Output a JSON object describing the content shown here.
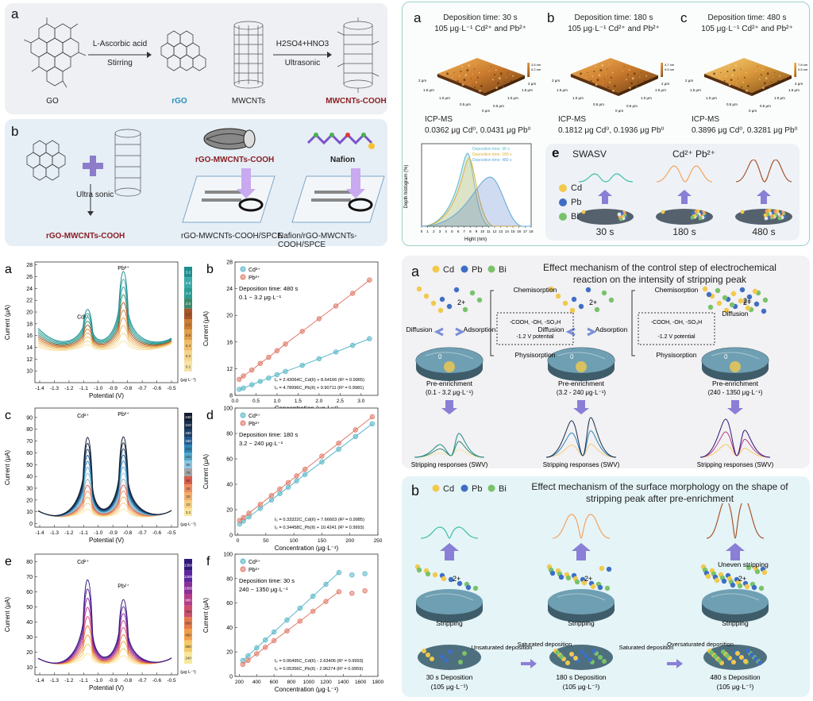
{
  "topleft": {
    "panel_a": {
      "letter": "a",
      "reagent1_line1": "L-Ascorbic acid",
      "reagent1_line2": "Stirring",
      "reagent2_line1": "H2SO4+HNO3",
      "reagent2_line2": "Ultrasonic",
      "label_go": "GO",
      "label_rgo": "rGO",
      "label_mwcnts": "MWCNTs",
      "label_mwcnts_cooh": "MWCNTs-COOH"
    },
    "panel_b": {
      "letter": "b",
      "ultrasonic": "Ultra sonic",
      "product": "rGO-MWCNTs-COOH",
      "tube_label": "rGO-MWCNTs-COOH",
      "nafion_label": "Nafion",
      "electrode1": "rGO-MWCNTs-COOH/SPCE",
      "electrode2": "Nafion/rGO-MWCNTs-COOH/SPCE"
    }
  },
  "topright": {
    "afm": [
      {
        "letter": "a",
        "time": "Deposition time: 30 s",
        "conc": "105 μg·L⁻¹ Cd²⁺ and Pb²⁺",
        "icp": "ICP-MS",
        "icp_values": "0.0362 μg Cd⁰, 0.0431 μg Pb⁰",
        "zmax": "3.5 nm",
        "zmin": "0.2 nm"
      },
      {
        "letter": "b",
        "time": "Deposition time: 180 s",
        "conc": "105 μg·L⁻¹ Cd²⁺ and Pb²⁺",
        "icp": "ICP-MS",
        "icp_values": "0.1812 μg Cd⁰, 0.1936 μg Pb⁰",
        "zmax": "4.7 nm",
        "zmin": "0.5 nm"
      },
      {
        "letter": "c",
        "time": "Deposition time: 480 s",
        "conc": "105 μg·L⁻¹ Cd²⁺ and Pb²⁺",
        "icp": "ICP-MS",
        "icp_values": "0.3896 μg Cd⁰, 0.3281 μg Pb⁰",
        "zmax": "7.8 nm",
        "zmin": "0.5 nm"
      }
    ],
    "afm_axis_labels": [
      "2 μm",
      "1.5 μm",
      "1.0 μm",
      "0.5 μm",
      "0 μm"
    ],
    "hist": {
      "letter": "d",
      "ylabel": "Depth histogram (%)",
      "xlabel": "Hight (nm)",
      "legend": [
        "Deposition time: 30 s",
        "Deposition time: 180 s",
        "Deposition time: 480 s"
      ],
      "xticks": [
        "0",
        "1",
        "2",
        "3",
        "4",
        "5",
        "6",
        "7",
        "8",
        "9",
        "10",
        "11",
        "12",
        "13",
        "14",
        "15",
        "16",
        "17",
        "18"
      ]
    },
    "swasv": {
      "letter": "e",
      "title": "SWASV",
      "ions": "Cd²⁺ Pb²⁺",
      "legend": [
        "Cd",
        "Pb",
        "Bi"
      ],
      "times": [
        "30 s",
        "180 s",
        "480 s"
      ]
    }
  },
  "voltammetry": {
    "panels": [
      {
        "letter": "a",
        "ylabel": "Current (μA)",
        "xlabel": "Potential (V)",
        "cd": "Cd²⁺",
        "pb": "Pb²⁺",
        "yticks": [
          "10",
          "12",
          "14",
          "16",
          "18",
          "20",
          "22",
          "24",
          "26",
          "28"
        ],
        "xticks": [
          "-1.4",
          "-1.3",
          "-1.2",
          "-1.1",
          "-1.0",
          "-0.9",
          "-0.8",
          "-0.7",
          "-0.6",
          "-0.5"
        ],
        "scale": [
          "3.2",
          "2.8",
          "2.4",
          "2.0",
          "1.6",
          "1.2",
          "0.8",
          "0.4",
          "0.2",
          "0.1"
        ],
        "unit": "(μg·L⁻¹)"
      },
      {
        "letter": "c",
        "ylabel": "Current (μA)",
        "xlabel": "Potential (V)",
        "cd": "Cd²⁺",
        "pb": "Pb²⁺",
        "yticks": [
          "0",
          "10",
          "20",
          "30",
          "40",
          "50",
          "60",
          "70",
          "80",
          "90"
        ],
        "xticks": [
          "-1.4",
          "-1.3",
          "-1.2",
          "-1.1",
          "-1.0",
          "-0.9",
          "-0.8",
          "-0.7",
          "-0.6",
          "-0.5"
        ],
        "scale": [
          "240",
          "210",
          "180",
          "150",
          "120",
          "105",
          "90",
          "75",
          "60",
          "40",
          "20",
          "10",
          "3.2"
        ],
        "unit": "(μg·L⁻¹)"
      },
      {
        "letter": "e",
        "ylabel": "Current (μA)",
        "xlabel": "Potential (V)",
        "cd": "Cd²⁺",
        "pb": "Pb²⁺",
        "yticks": [
          "10",
          "20",
          "30",
          "40",
          "50",
          "60",
          "70",
          "80"
        ],
        "xticks": [
          "-1.4",
          "-1.3",
          "-1.2",
          "-1.1",
          "-1.0",
          "-0.9",
          "-0.8",
          "-0.7",
          "-0.6",
          "-0.5"
        ],
        "scale": [
          "1350",
          "1200",
          "1050",
          "900",
          "750",
          "600",
          "450",
          "300",
          "240"
        ],
        "unit": "(μg·L⁻¹)"
      }
    ]
  },
  "chart_data": [
    {
      "type": "scatter",
      "letter": "b",
      "xlabel": "Concentration (μg·L⁻¹)",
      "ylabel": "Current (μA)",
      "xlim": [
        0,
        3.4
      ],
      "ylim": [
        8,
        28
      ],
      "xticks": [
        "0.0",
        "0.5",
        "1.0",
        "1.5",
        "2.0",
        "2.5",
        "3.0",
        "3.5"
      ],
      "yticks": [
        "8",
        "12",
        "16",
        "20",
        "24",
        "28"
      ],
      "note1": "Deposition time: 480 s",
      "note2": "0.1 ~ 3.2 μg·L⁻¹",
      "eq1": "Iₚ = 2.43064C_Cd(II) + 8.64166 (R² = 0.9965)",
      "eq2": "Iₚ = 4.78996C_Pb(II) + 9.90711 (R² = 0.9981)",
      "x": [
        0.1,
        0.2,
        0.4,
        0.6,
        0.8,
        1.0,
        1.2,
        1.6,
        2.0,
        2.4,
        2.8,
        3.2
      ],
      "series": [
        {
          "name": "Cd²⁺",
          "color": "#5bb8c9",
          "values": [
            8.9,
            9.1,
            9.6,
            10.1,
            10.6,
            11.1,
            11.6,
            12.5,
            13.5,
            14.5,
            15.5,
            16.5
          ]
        },
        {
          "name": "Pb²⁺",
          "color": "#e07b6b",
          "values": [
            10.4,
            10.9,
            11.8,
            12.8,
            13.7,
            14.7,
            15.7,
            17.6,
            19.5,
            21.4,
            23.3,
            25.3
          ]
        }
      ]
    },
    {
      "type": "scatter",
      "letter": "d",
      "xlabel": "Concentration (μg·L⁻¹)",
      "ylabel": "Current (μA)",
      "xlim": [
        -5,
        250
      ],
      "ylim": [
        0,
        100
      ],
      "xticks": [
        "0",
        "50",
        "100",
        "150",
        "200",
        "250"
      ],
      "yticks": [
        "0",
        "20",
        "40",
        "60",
        "80",
        "100"
      ],
      "note1": "Deposition time: 180 s",
      "note2": "3.2 ~ 240 μg·L⁻¹",
      "eq1": "Iₚ = 0.33322C_Cd(II) + 7.66603 (R² = 0.9985)",
      "eq2": "Iₚ = 0.34458C_Pb(II) + 10.4241 (R² = 0.9993)",
      "x": [
        3.2,
        10,
        20,
        40,
        60,
        75,
        90,
        105,
        120,
        150,
        180,
        210,
        240
      ],
      "series": [
        {
          "name": "Cd²⁺",
          "color": "#5bb8c9",
          "values": [
            8.7,
            11,
            14.3,
            21,
            27.6,
            32.7,
            37.7,
            42.7,
            47.7,
            57.6,
            67.6,
            77.6,
            87.6
          ]
        },
        {
          "name": "Pb²⁺",
          "color": "#e07b6b",
          "values": [
            11.5,
            13.9,
            17.3,
            24.2,
            31.1,
            36.3,
            41.4,
            46.6,
            51.8,
            62.1,
            72.4,
            82.8,
            93.1
          ]
        }
      ]
    },
    {
      "type": "scatter",
      "letter": "f",
      "xlabel": "Concentration (μg·L⁻¹)",
      "ylabel": "Current (μA)",
      "xlim": [
        150,
        1800
      ],
      "ylim": [
        0,
        100
      ],
      "xticks": [
        "200",
        "400",
        "600",
        "800",
        "1000",
        "1200",
        "1400",
        "1600",
        "1800"
      ],
      "yticks": [
        "0",
        "20",
        "40",
        "60",
        "80",
        "100"
      ],
      "note1": "Deposition time: 30 s",
      "note2": "240 ~ 1350 μg·L⁻¹",
      "eq1": "Iₚ = 0.06495C_Cd(II) - 2.63406 (R² = 0.9993)",
      "eq2": "Iₚ = 0.05356C_Pb(II) - 2.96274 (R² = 0.9959)",
      "x": [
        240,
        300,
        400,
        500,
        600,
        750,
        900,
        1050,
        1200,
        1350,
        1500,
        1650
      ],
      "series": [
        {
          "name": "Cd²⁺",
          "color": "#5bb8c9",
          "values": [
            13,
            16.8,
            23.3,
            29.8,
            36.3,
            46.1,
            55.8,
            65.6,
            75.3,
            85,
            83,
            84
          ]
        },
        {
          "name": "Pb²⁺",
          "color": "#e07b6b",
          "values": [
            9.9,
            13.1,
            18.5,
            23.8,
            29.2,
            37.2,
            45.2,
            53.3,
            61.3,
            69.3,
            68,
            70
          ]
        }
      ]
    }
  ],
  "mech_a": {
    "letter": "a",
    "legend": [
      "Cd",
      "Pb",
      "Bi"
    ],
    "title_line1": "Effect mechanism of the control step of electrochemical",
    "title_line2": "reaction on the intensity of stripping peak",
    "chemisorption": "Chemisorption",
    "groups": "-COOH, -OH, -SO₃H",
    "potential": "-1.2 V potential",
    "physisorption": "Physisorption",
    "diffusion": "Diffusion",
    "adsorption": "Adsorption",
    "charge": "2+",
    "zero": "0",
    "pre": "Pre-enrichment",
    "ranges": [
      "(0.1 - 3.2 μg·L⁻¹)",
      "(3.2 - 240 μg·L⁻¹)",
      "(240 - 1350 μg·L⁻¹)"
    ],
    "stripping": "Stripping responses (SWV)"
  },
  "mech_b": {
    "letter": "b",
    "legend": [
      "Cd",
      "Pb",
      "Bi"
    ],
    "title_line1": "Effect mechanism of the surface morphology on the shape of",
    "title_line2": "stripping peak after pre-enrichment",
    "stripping": "Stripping",
    "uneven": "Uneven stripping",
    "charge": "2+",
    "steps": [
      "Unsaturated deposition",
      "Saturated deposition",
      "Saturated deposition",
      "Oversaturated deposition"
    ],
    "deps": [
      "30 s Deposition",
      "180 s Deposition",
      "480 s Deposition"
    ],
    "conc": "(105 μg·L⁻¹)"
  },
  "colors": {
    "panel_gray": "#eef0f3",
    "panel_blue": "#e6eef6",
    "cd": "#f2c94c",
    "pb": "#3f6ec4",
    "bi": "#7ac26a",
    "cd_series": "#5bb8c9",
    "pb_series": "#e07b6b"
  }
}
